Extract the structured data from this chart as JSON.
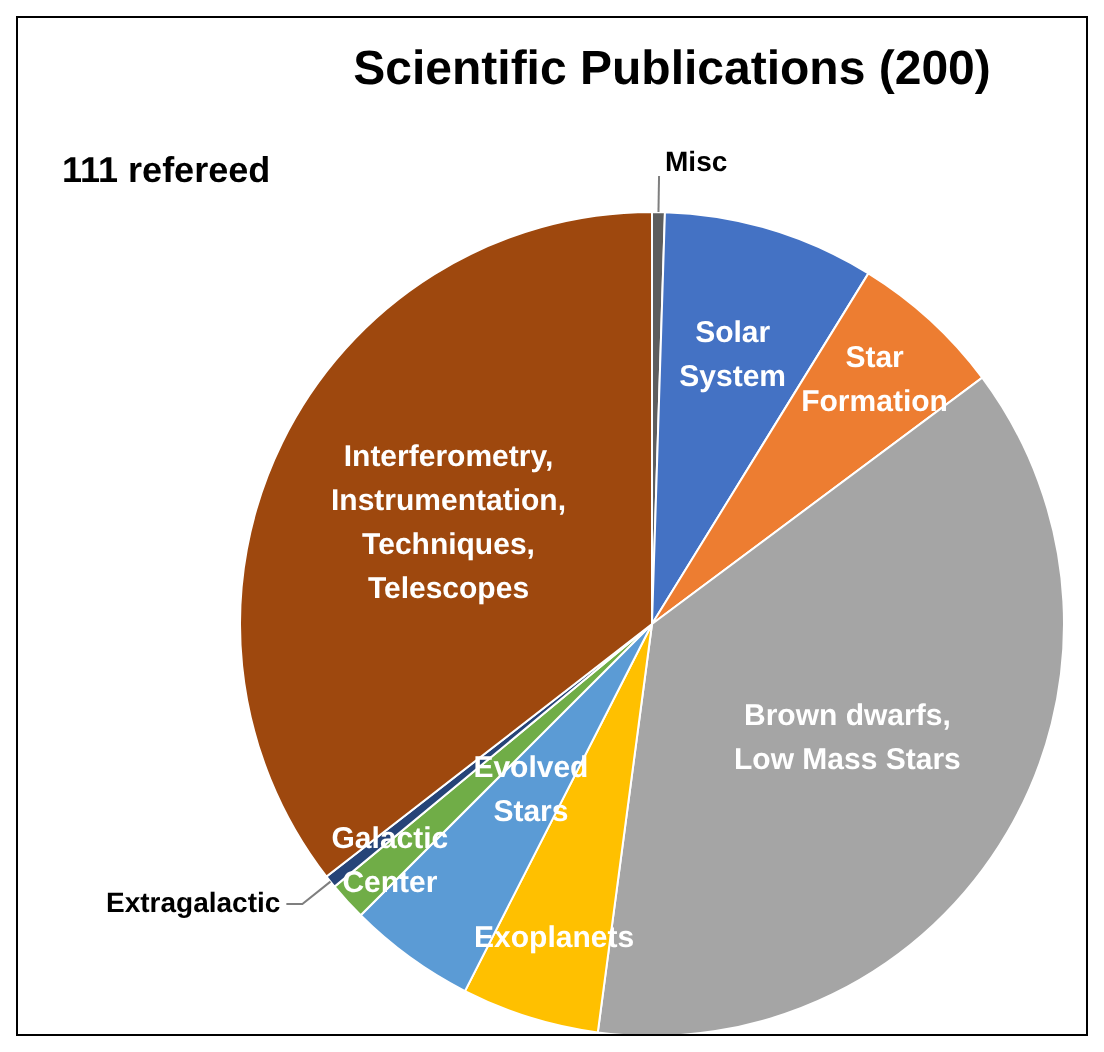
{
  "chart_data": {
    "type": "pie",
    "title": "Scientific Publications (200)",
    "annotations": [
      "111 refereed"
    ],
    "categories": [
      "Misc",
      "Solar\nSystem",
      "Star\nFormation",
      "Brown dwarfs,\nLow Mass Stars",
      "Exoplanets",
      "Evolved\nStars",
      "Galactic\nCenter",
      "Extragalactic",
      "Interferometry,\nInstrumentation,\nTechniques,\nTelescopes"
    ],
    "values": [
      0.5,
      8.3,
      6,
      37.3,
      5.4,
      5,
      1.5,
      0.5,
      35.5
    ],
    "colors": [
      "#5e5e5e",
      "#4472c4",
      "#ed7d31",
      "#a5a5a5",
      "#ffc000",
      "#5b9bd5",
      "#70ad47",
      "#264478",
      "#9e480e"
    ],
    "legend": false
  }
}
